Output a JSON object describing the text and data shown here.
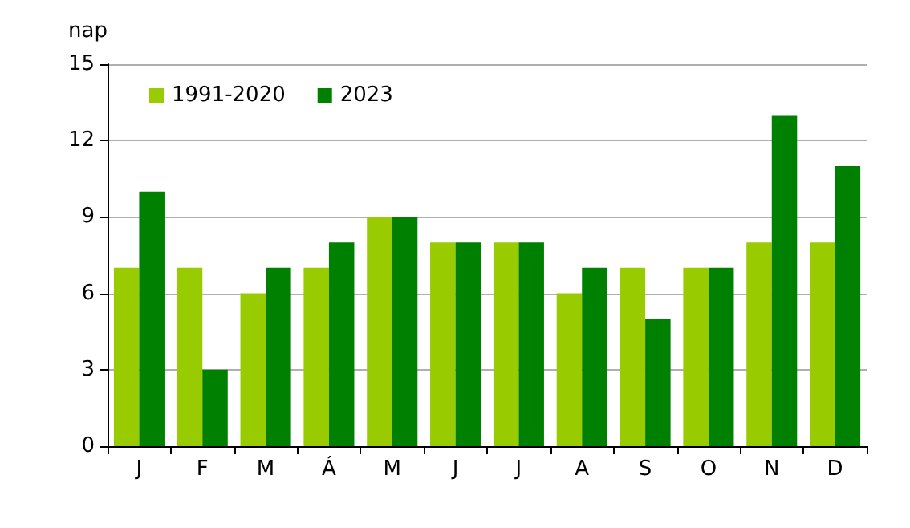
{
  "chart_data": {
    "type": "bar",
    "ylabel": "nap",
    "categories": [
      "J",
      "F",
      "M",
      "Á",
      "M",
      "J",
      "J",
      "A",
      "S",
      "O",
      "N",
      "D"
    ],
    "series": [
      {
        "name": "1991-2020",
        "color": "#99cc00",
        "values": [
          7,
          7,
          6,
          7,
          9,
          8,
          8,
          6,
          7,
          7,
          8,
          8
        ]
      },
      {
        "name": "2023",
        "color": "#008000",
        "values": [
          10,
          3,
          7,
          8,
          9,
          8,
          8,
          7,
          5,
          7,
          13,
          11
        ]
      }
    ],
    "ylim": [
      0,
      15
    ],
    "yticks": [
      0,
      3,
      6,
      9,
      12,
      15
    ],
    "grid": "y",
    "legend": "top left"
  }
}
